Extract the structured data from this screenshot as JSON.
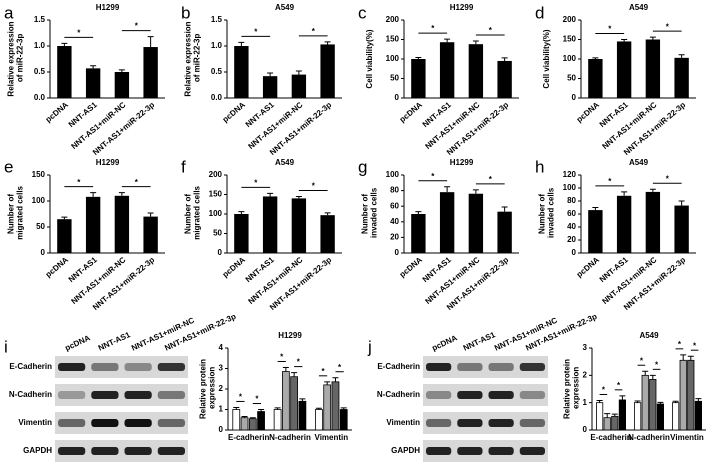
{
  "panel_letters": [
    "a",
    "b",
    "c",
    "d",
    "e",
    "f",
    "g",
    "h",
    "i",
    "j"
  ],
  "blots": [
    {
      "lanes": [
        "pcDNA",
        "NNT-AS1",
        "NNT-AS1+miR-NC",
        "NNT-AS1+miR-22-3p"
      ],
      "rows": [
        "E-Cadherin",
        "N-Cadherin",
        "Vimentin",
        "GAPDH"
      ]
    },
    {
      "lanes": [
        "pcDNA",
        "NNT-AS1",
        "NNT-AS1+miR-NC",
        "NNT-AS1+miR-22-3p"
      ],
      "rows": [
        "E-Cadherin",
        "N-Cadherin",
        "Vimentin",
        "GAPDH"
      ]
    }
  ],
  "chart_data": [
    {
      "type": "bar",
      "title": "H1299",
      "ylabel": "Relative expression of miR-22-3p",
      "categories": [
        "pcDNA",
        "NNT-AS1",
        "NNT-AS1+miR-NC",
        "NNT-AS1+miR-22-3p"
      ],
      "values": [
        1.0,
        0.57,
        0.5,
        0.98
      ],
      "errors": [
        0.05,
        0.05,
        0.04,
        0.2
      ],
      "color": "#000000",
      "ylim": [
        0,
        1.5
      ],
      "yticks": [
        {
          "value": 0,
          "label": "0.0"
        },
        0.5,
        {
          "value": 1,
          "label": "1.0"
        },
        1.5
      ],
      "significance": [
        "*",
        "*"
      ]
    },
    {
      "type": "bar",
      "title": "A549",
      "ylabel": "Relative expression of miR-22-3p",
      "categories": [
        "pcDNA",
        "NNT-AS1",
        "NNT-AS1+miR-NC",
        "NNT-AS1+miR-22-3p"
      ],
      "values": [
        1.0,
        0.42,
        0.45,
        1.03
      ],
      "errors": [
        0.07,
        0.06,
        0.07,
        0.05
      ],
      "color": "#000000",
      "ylim": [
        0,
        1.5
      ],
      "yticks": [
        {
          "value": 0,
          "label": "0.0"
        },
        0.5,
        {
          "value": 1,
          "label": "1.0"
        },
        1.5
      ],
      "significance": [
        "*",
        "*"
      ]
    },
    {
      "type": "bar",
      "title": "H1299",
      "ylabel": "Cell viability(%)",
      "categories": [
        "pcDNA",
        "NNT-AS1",
        "NNT-AS1+miR-NC",
        "NNT-AS1+miR-22-3p"
      ],
      "values": [
        100,
        143,
        138,
        95
      ],
      "errors": [
        4,
        8,
        8,
        8
      ],
      "color": "#000000",
      "ylim": [
        0,
        200
      ],
      "yticks": [
        0,
        50,
        100,
        150,
        200
      ],
      "significance": [
        "*",
        "*"
      ]
    },
    {
      "type": "bar",
      "title": "A549",
      "ylabel": "Cell viability(%)",
      "categories": [
        "pcDNA",
        "NNT-AS1",
        "NNT-AS1+miR-NC",
        "NNT-AS1+miR-22-3p"
      ],
      "values": [
        100,
        145,
        150,
        103
      ],
      "errors": [
        3,
        5,
        6,
        8
      ],
      "color": "#000000",
      "ylim": [
        0,
        200
      ],
      "yticks": [
        0,
        50,
        100,
        150,
        200
      ],
      "significance": [
        "*",
        "*"
      ]
    },
    {
      "type": "bar",
      "title": "H1299",
      "ylabel": "Number of migrated cells",
      "categories": [
        "pcDNA",
        "NNT-AS1",
        "NNT-AS1+miR-NC",
        "NNT-AS1+miR-22-3p"
      ],
      "values": [
        65,
        108,
        110,
        70
      ],
      "errors": [
        4,
        8,
        6,
        7
      ],
      "color": "#000000",
      "ylim": [
        0,
        150
      ],
      "yticks": [
        0,
        50,
        100,
        150
      ],
      "significance": [
        "*",
        "*"
      ]
    },
    {
      "type": "bar",
      "title": "A549",
      "ylabel": "Number of migrated cells",
      "categories": [
        "pcDNA",
        "NNT-AS1",
        "NNT-AS1+miR-NC",
        "NNT-AS1+miR-22-3p"
      ],
      "values": [
        100,
        145,
        140,
        97
      ],
      "errors": [
        6,
        8,
        5,
        6
      ],
      "color": "#000000",
      "ylim": [
        0,
        200
      ],
      "yticks": [
        0,
        50,
        100,
        150,
        200
      ],
      "significance": [
        "*",
        "*"
      ]
    },
    {
      "type": "bar",
      "title": "H1299",
      "ylabel": "Number of invaded cells",
      "categories": [
        "pcDNA",
        "NNT-AS1",
        "NNT-AS1+miR-NC",
        "NNT-AS1+miR-22-3p"
      ],
      "values": [
        50,
        78,
        76,
        53
      ],
      "errors": [
        3,
        7,
        5,
        6
      ],
      "color": "#000000",
      "ylim": [
        0,
        100
      ],
      "yticks": [
        0,
        20,
        40,
        60,
        80,
        100
      ],
      "significance": [
        "*",
        "*"
      ]
    },
    {
      "type": "bar",
      "title": "A549",
      "ylabel": "Number of invaded cells",
      "categories": [
        "pcDNA",
        "NNT-AS1",
        "NNT-AS1+miR-NC",
        "NNT-AS1+miR-22-3p"
      ],
      "values": [
        66,
        88,
        94,
        73
      ],
      "errors": [
        4,
        6,
        4,
        7
      ],
      "color": "#000000",
      "ylim": [
        0,
        120
      ],
      "yticks": [
        0,
        20,
        40,
        60,
        80,
        100,
        120
      ],
      "significance": [
        "*",
        "*"
      ]
    },
    {
      "type": "bar",
      "title": "H1299",
      "ylabel": "Relative protein expression",
      "categories": [
        "E-cadherin",
        "N-cadherin",
        "Vimentin"
      ],
      "series": [
        {
          "color": "#ffffff",
          "values": [
            1.0,
            1.0,
            1.0
          ],
          "errors": [
            0.1,
            0.08,
            0.06
          ]
        },
        {
          "color": "#aaaaaa",
          "values": [
            0.6,
            2.85,
            2.2
          ],
          "errors": [
            0.06,
            0.2,
            0.15
          ]
        },
        {
          "color": "#666666",
          "values": [
            0.55,
            2.6,
            2.35
          ],
          "errors": [
            0.05,
            0.2,
            0.2
          ]
        },
        {
          "color": "#000000",
          "values": [
            0.9,
            1.4,
            1.0
          ],
          "errors": [
            0.1,
            0.12,
            0.08
          ]
        }
      ],
      "ylim": [
        0,
        4
      ],
      "yticks": [
        0,
        1,
        2,
        3,
        4
      ],
      "significance": [
        "*",
        "*",
        "*",
        "*",
        "*",
        "*"
      ]
    },
    {
      "type": "bar",
      "title": "A549",
      "ylabel": "Relative protein expression",
      "categories": [
        "E-cadherin",
        "N-cadherin",
        "Vimentin"
      ],
      "series": [
        {
          "color": "#ffffff",
          "values": [
            1.0,
            1.0,
            1.0
          ],
          "errors": [
            0.08,
            0.06,
            0.05
          ]
        },
        {
          "color": "#aaaaaa",
          "values": [
            0.45,
            2.0,
            2.55
          ],
          "errors": [
            0.15,
            0.15,
            0.2
          ]
        },
        {
          "color": "#666666",
          "values": [
            0.5,
            1.85,
            2.55
          ],
          "errors": [
            0.08,
            0.15,
            0.15
          ]
        },
        {
          "color": "#000000",
          "values": [
            1.1,
            0.95,
            1.05
          ],
          "errors": [
            0.15,
            0.06,
            0.1
          ]
        }
      ],
      "ylim": [
        0,
        3
      ],
      "yticks": [
        0,
        1,
        2,
        3
      ],
      "significance": [
        "*",
        "*",
        "*",
        "*",
        "*",
        "*"
      ]
    }
  ]
}
